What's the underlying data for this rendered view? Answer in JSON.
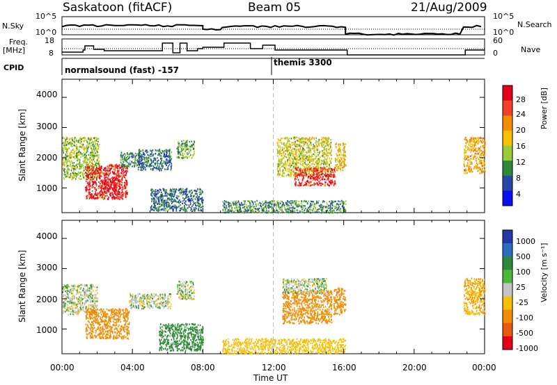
{
  "header": {
    "site": "Saskatoon (fitACF)",
    "beam": "Beam 05",
    "date": "21/Aug/2009"
  },
  "left_labels": {
    "nsky": "N.Sky",
    "freq": "Freq.",
    "freq_unit": "[MHz]",
    "cpid": "CPID"
  },
  "right_labels": {
    "nsearch": "N.Search",
    "nave": "Nave"
  },
  "ticks": {
    "noise_left": [
      "10^5",
      "10^0"
    ],
    "noise_right": [
      "10^5",
      "10^0"
    ],
    "freq_left": [
      "18",
      "8"
    ],
    "nave_right": [
      "60",
      "0"
    ],
    "range": [
      "4000",
      "3000",
      "2000",
      "1000"
    ],
    "time": [
      "00:00",
      "04:00",
      "08:00",
      "12:00",
      "16:00",
      "20:00",
      "00:00"
    ]
  },
  "cpid_labels": {
    "mode1": "normalsound (fast) -157",
    "mode2": "themis 3300"
  },
  "axes": {
    "y_label": "Slant Range [km]",
    "x_label": "Time UT"
  },
  "colorbars": {
    "power": {
      "label": "Power [dB]",
      "ticks": [
        "28",
        "24",
        "20",
        "16",
        "12",
        "8",
        "4"
      ],
      "colors": [
        "#e4001a",
        "#f3402a",
        "#f28c00",
        "#f8c000",
        "#9acb36",
        "#2e8a3a",
        "#2747a8",
        "#0b0ff0"
      ]
    },
    "velocity": {
      "label": "Velocity [m s⁻¹]",
      "ticks": [
        "1000",
        "500",
        "100",
        "25",
        "-25",
        "-100",
        "-500",
        "-1000"
      ],
      "colors": [
        "#2638a8",
        "#2e6ec0",
        "#2e8a3a",
        "#4cb83a",
        "#c4c4c4",
        "#f8c000",
        "#f28c00",
        "#e85a10",
        "#e4001a"
      ]
    }
  },
  "chart_data": {
    "type": "heatmap",
    "x_unit": "hours UT",
    "xlim": [
      0,
      24
    ],
    "ylim_km": [
      180,
      4600
    ],
    "y_ticks_km": [
      1000,
      2000,
      3000,
      4000
    ],
    "grid": false,
    "marker_line_hour": 12,
    "mode_change_hour": 12,
    "no_data_intervals_hours": [
      [
        8.0,
        9.1
      ],
      [
        16.1,
        22.8
      ]
    ],
    "power_scatter_regions": [
      {
        "t": [
          0.0,
          2.1
        ],
        "range_km": [
          1300,
          2700
        ],
        "level_db": 12
      },
      {
        "t": [
          1.3,
          3.7
        ],
        "range_km": [
          650,
          1800
        ],
        "level_db": 26
      },
      {
        "t": [
          2.2,
          3.3
        ],
        "range_km": [
          800,
          1300
        ],
        "level_db": 28
      },
      {
        "t": [
          3.3,
          4.5
        ],
        "range_km": [
          1700,
          2200
        ],
        "level_db": 8
      },
      {
        "t": [
          4.3,
          6.2
        ],
        "range_km": [
          1600,
          2300
        ],
        "level_db": 6
      },
      {
        "t": [
          6.5,
          7.5
        ],
        "range_km": [
          2000,
          2600
        ],
        "level_db": 10
      },
      {
        "t": [
          5.0,
          8.0
        ],
        "range_km": [
          250,
          1000
        ],
        "level_db": 6
      },
      {
        "t": [
          9.1,
          16.1
        ],
        "range_km": [
          200,
          600
        ],
        "level_db": 8
      },
      {
        "t": [
          12.2,
          15.3
        ],
        "range_km": [
          1400,
          2700
        ],
        "level_db": 14
      },
      {
        "t": [
          13.2,
          15.5
        ],
        "range_km": [
          1100,
          1700
        ],
        "level_db": 26
      },
      {
        "t": [
          15.5,
          16.1
        ],
        "range_km": [
          1600,
          2500
        ],
        "level_db": 16
      },
      {
        "t": [
          22.8,
          24.0
        ],
        "range_km": [
          1500,
          2700
        ],
        "level_db": 18
      }
    ],
    "velocity_scatter_regions": [
      {
        "t": [
          0.0,
          2.0
        ],
        "range_km": [
          1500,
          2500
        ],
        "vel": 0
      },
      {
        "t": [
          1.3,
          3.8
        ],
        "range_km": [
          700,
          1700
        ],
        "vel": -300
      },
      {
        "t": [
          3.8,
          6.2
        ],
        "range_km": [
          1700,
          2200
        ],
        "vel": 0
      },
      {
        "t": [
          5.5,
          8.0
        ],
        "range_km": [
          300,
          1200
        ],
        "vel": 60
      },
      {
        "t": [
          6.5,
          7.5
        ],
        "range_km": [
          2000,
          2600
        ],
        "vel": 0
      },
      {
        "t": [
          9.1,
          16.1
        ],
        "range_km": [
          200,
          700
        ],
        "vel": -60
      },
      {
        "t": [
          12.5,
          15.3
        ],
        "range_km": [
          1200,
          2300
        ],
        "vel": -400
      },
      {
        "t": [
          12.5,
          15.0
        ],
        "range_km": [
          2200,
          2700
        ],
        "vel": 0
      },
      {
        "t": [
          15.4,
          16.1
        ],
        "range_km": [
          1500,
          2400
        ],
        "vel": -400
      },
      {
        "t": [
          22.8,
          24.0
        ],
        "range_km": [
          1500,
          2700
        ],
        "vel": -100
      }
    ]
  }
}
